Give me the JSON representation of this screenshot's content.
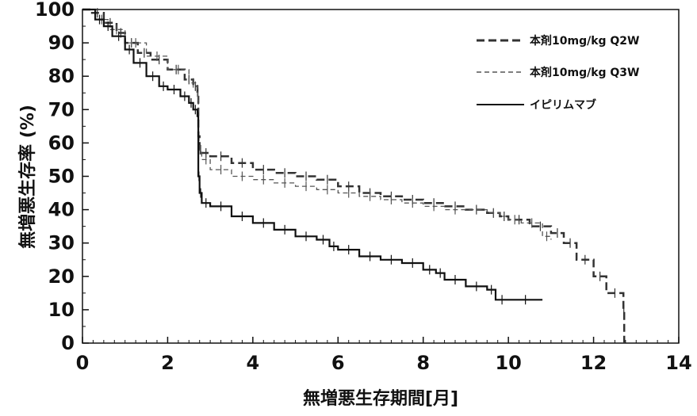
{
  "chart_data": {
    "type": "line",
    "title": "",
    "xlabel": "無増悪生存期間[月]",
    "ylabel": "無増悪生存率 (%)",
    "xlim": [
      0,
      14
    ],
    "ylim": [
      0,
      100
    ],
    "xticks": [
      "0",
      "2",
      "4",
      "6",
      "8",
      "10",
      "12",
      "14"
    ],
    "yticks": [
      "0",
      "10",
      "20",
      "30",
      "40",
      "50",
      "60",
      "70",
      "80",
      "90",
      "100"
    ],
    "legend_position": "top-right",
    "grid": false,
    "series": [
      {
        "name": "本剤10mg/kg Q2W",
        "style": "dashed",
        "color": "#333333",
        "x": [
          0,
          0.2,
          0.5,
          0.8,
          1.0,
          1.3,
          1.6,
          2.0,
          2.4,
          2.6,
          2.7,
          2.72,
          2.75,
          2.8,
          3.0,
          3.5,
          4.0,
          4.5,
          5.0,
          5.5,
          6.0,
          6.5,
          7.0,
          7.5,
          8.0,
          8.5,
          9.0,
          9.5,
          9.8,
          10.0,
          10.5,
          11.0,
          11.3,
          11.6,
          12.0,
          12.3,
          12.7,
          12.72
        ],
        "y": [
          100,
          99,
          96,
          93,
          90,
          87,
          85,
          82,
          79,
          77,
          75,
          62,
          58,
          57,
          56,
          54,
          52,
          51,
          50,
          49,
          47,
          45,
          44,
          43,
          42,
          41,
          40,
          39,
          38,
          37,
          35,
          33,
          30,
          25,
          20,
          15,
          10,
          0
        ]
      },
      {
        "name": "本剤10mg/kg Q3W",
        "style": "dashed-thin",
        "color": "#555555",
        "x": [
          0,
          0.3,
          0.6,
          1.0,
          1.5,
          2.0,
          2.5,
          2.7,
          2.72,
          2.8,
          3.0,
          3.5,
          4.0,
          4.5,
          5.0,
          5.5,
          6.0,
          6.5,
          7.0,
          7.5,
          8.0,
          8.5,
          9.0,
          9.5,
          9.8,
          10.0,
          10.3,
          10.8,
          11.0
        ],
        "y": [
          100,
          97,
          94,
          90,
          86,
          82,
          78,
          74,
          58,
          55,
          52,
          50,
          49,
          48,
          47,
          46,
          45,
          44,
          43,
          42,
          41,
          40,
          40,
          39,
          38,
          37,
          36,
          32,
          31
        ]
      },
      {
        "name": "イピリムマブ",
        "style": "solid",
        "color": "#111111",
        "x": [
          0,
          0.3,
          0.5,
          0.7,
          1.0,
          1.2,
          1.5,
          1.8,
          2.0,
          2.3,
          2.5,
          2.6,
          2.7,
          2.72,
          2.75,
          2.8,
          3.0,
          3.5,
          4.0,
          4.5,
          5.0,
          5.5,
          5.8,
          6.0,
          6.5,
          7.0,
          7.5,
          8.0,
          8.3,
          8.5,
          9.0,
          9.5,
          9.7,
          10.0,
          10.8
        ],
        "y": [
          100,
          97,
          95,
          92,
          88,
          84,
          80,
          77,
          76,
          74,
          72,
          70,
          68,
          50,
          45,
          42,
          41,
          38,
          36,
          34,
          32,
          31,
          29,
          28,
          26,
          25,
          24,
          22,
          21,
          19,
          17,
          16,
          13,
          13,
          13
        ]
      }
    ]
  }
}
